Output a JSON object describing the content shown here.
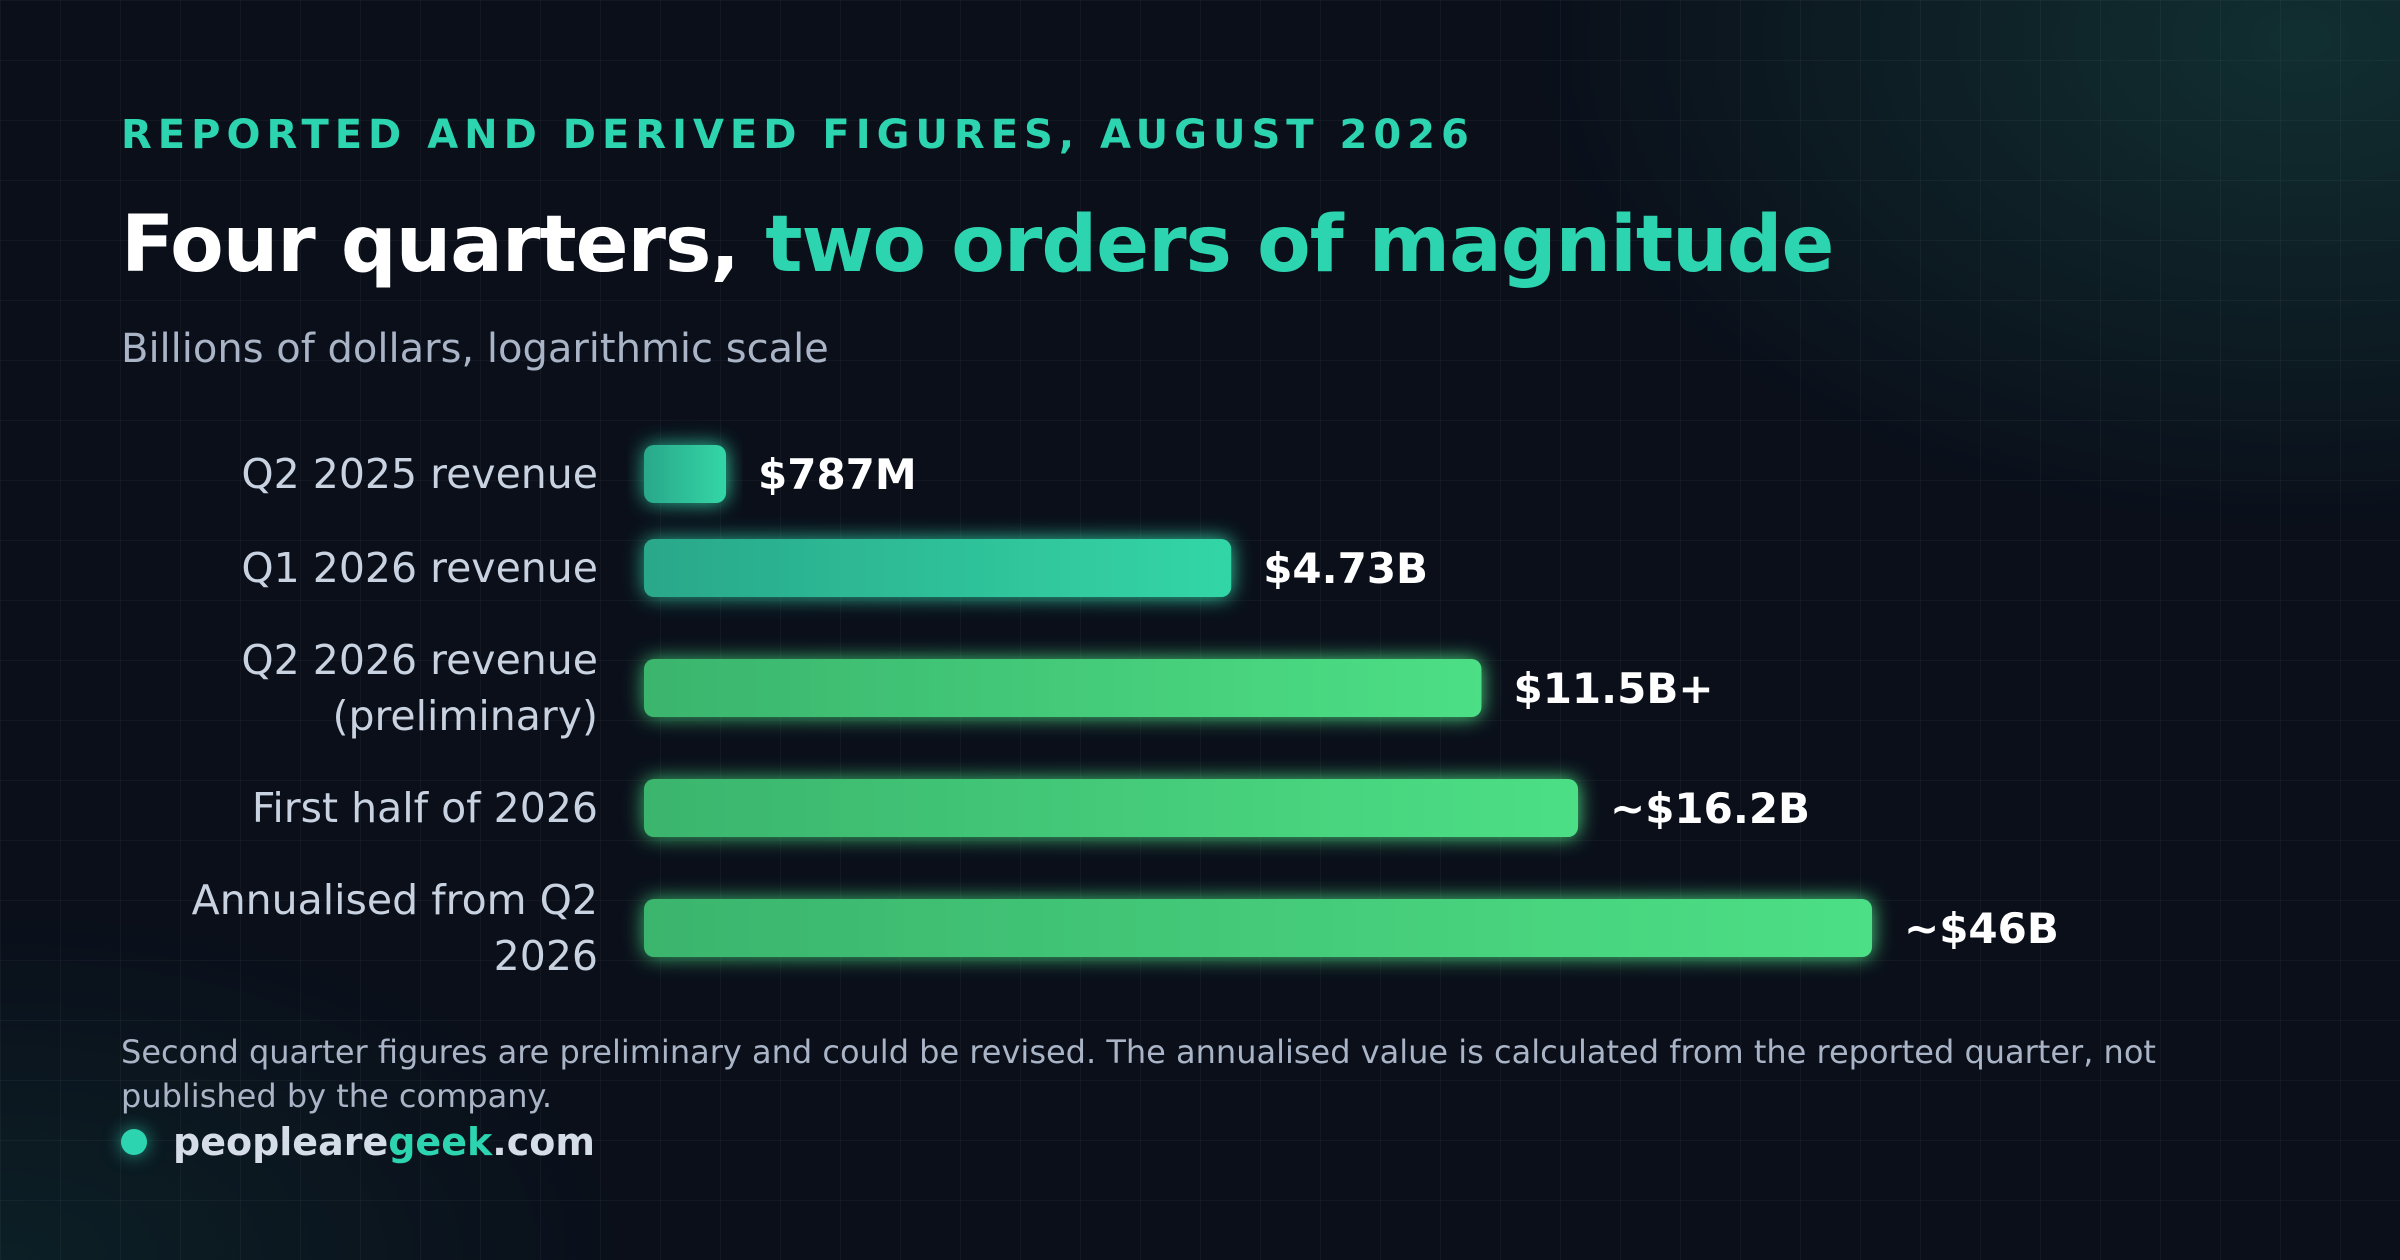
{
  "eyebrow": "REPORTED AND DERIVED FIGURES, AUGUST 2026",
  "title": {
    "lead": "Four quarters, ",
    "accent": "two orders of magnitude"
  },
  "subtitle": "Billions of dollars, logarithmic scale",
  "footnote": "Second quarter figures are preliminary and could be revised. The annualised value is calculated from the reported quarter, not published by the company.",
  "brand": {
    "part1": "peopleare",
    "part2": "geek",
    "part3": ".com"
  },
  "colors": {
    "accent": "#2dd4b0",
    "bar_teal_start": "#2aa88a",
    "bar_teal_end": "#33d6a6",
    "bar_green_start": "#3bb56d",
    "bar_green_end": "#4ddf85"
  },
  "chart_data": {
    "type": "bar",
    "orientation": "horizontal",
    "scale": "log",
    "unit": "Billions of dollars",
    "categories": [
      [
        "Q2 2025 revenue"
      ],
      [
        "Q1 2026 revenue"
      ],
      [
        "Q2 2026 revenue",
        "(preliminary)"
      ],
      [
        "First half of 2026"
      ],
      [
        "Annualised from Q2",
        "2026"
      ]
    ],
    "values": [
      0.787,
      4.73,
      11.5,
      16.2,
      46
    ],
    "labels": [
      "$787M",
      "$4.73B",
      "$11.5B+",
      "~$16.2B",
      "~$46B"
    ],
    "bar_styles": [
      "teal",
      "teal",
      "green",
      "green",
      "green"
    ],
    "grid": false,
    "legend": "none"
  }
}
